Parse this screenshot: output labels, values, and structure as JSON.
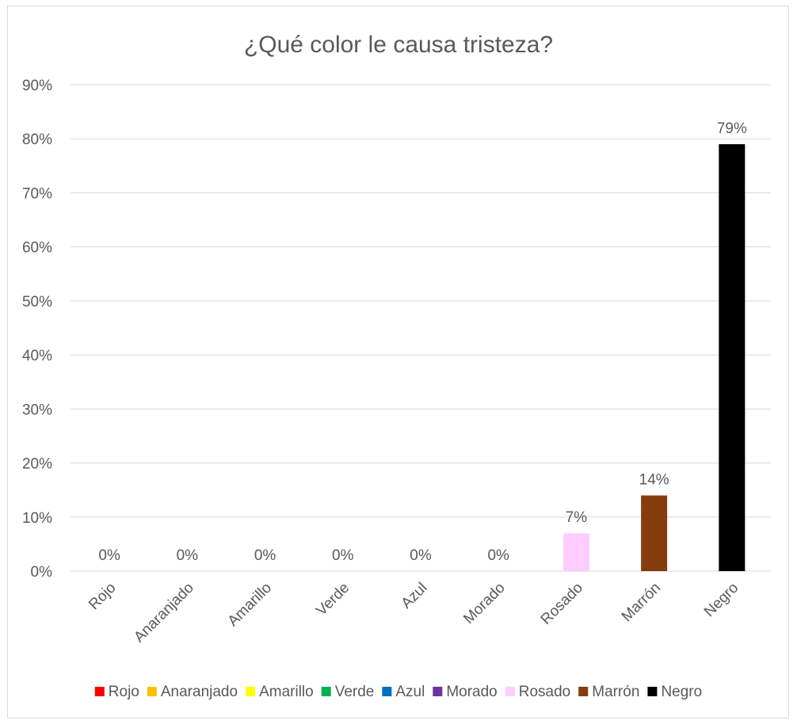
{
  "chart_data": {
    "type": "bar",
    "title": "¿Qué color le causa tristeza?",
    "categories": [
      "Rojo",
      "Anaranjado",
      "Amarillo",
      "Verde",
      "Azul",
      "Morado",
      "Rosado",
      "Marrón",
      "Negro"
    ],
    "values": [
      0,
      0,
      0,
      0,
      0,
      0,
      7,
      14,
      79
    ],
    "data_labels": [
      "0%",
      "0%",
      "0%",
      "0%",
      "0%",
      "0%",
      "7%",
      "14%",
      "79%"
    ],
    "colors": [
      "#ff0000",
      "#ffc000",
      "#ffff00",
      "#00b050",
      "#0070c0",
      "#7030a0",
      "#ffccff",
      "#843c0c",
      "#000000"
    ],
    "ylim": [
      0,
      90
    ],
    "yticks": [
      "0%",
      "10%",
      "20%",
      "30%",
      "40%",
      "50%",
      "60%",
      "70%",
      "80%",
      "90%"
    ],
    "xlabel": "",
    "ylabel": "",
    "grid": true,
    "legend_position": "bottom"
  }
}
